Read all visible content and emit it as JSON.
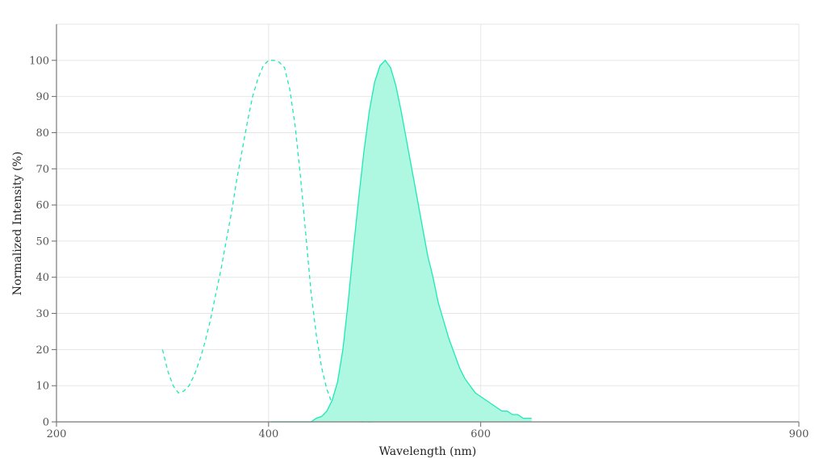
{
  "chart_data": {
    "type": "area",
    "xlabel": "Wavelength (nm)",
    "ylabel": "Normalized Intensity (%)",
    "xlim": [
      200,
      900
    ],
    "ylim": [
      0,
      110
    ],
    "grid": true,
    "x_ticks": [
      200,
      400,
      600,
      900
    ],
    "y_ticks": [
      0,
      10,
      20,
      30,
      40,
      50,
      60,
      70,
      80,
      90,
      100
    ],
    "colors": {
      "excitation": "#1de9b6",
      "emission_line": "#1de9b6",
      "emission_fill": "#aef8e2"
    },
    "series": [
      {
        "style": "dashed-line",
        "x": [
          300,
          305,
          310,
          315,
          320,
          325,
          330,
          335,
          340,
          345,
          350,
          355,
          360,
          365,
          370,
          375,
          380,
          385,
          390,
          395,
          400,
          405,
          410,
          415,
          420,
          425,
          430,
          435,
          440,
          445,
          450,
          455,
          460,
          465,
          470,
          475,
          480,
          485,
          490,
          495,
          500
        ],
        "y": [
          20,
          14,
          10,
          8,
          8.5,
          10,
          13,
          17,
          22,
          28,
          35,
          42,
          50,
          58,
          67,
          75,
          83,
          90,
          95,
          98.5,
          100,
          100,
          99.5,
          98,
          92,
          82,
          68,
          52,
          36,
          24,
          15,
          9,
          5,
          2.5,
          1.2,
          0.5,
          0.2,
          0,
          0,
          0,
          0
        ]
      },
      {
        "style": "filled-area",
        "x": [
          402,
          420,
          430,
          440,
          445,
          450,
          455,
          460,
          465,
          470,
          475,
          480,
          485,
          490,
          495,
          500,
          505,
          510,
          515,
          520,
          525,
          530,
          535,
          540,
          545,
          550,
          555,
          560,
          565,
          570,
          575,
          580,
          585,
          590,
          595,
          600,
          605,
          610,
          615,
          620,
          625,
          630,
          635,
          640,
          648
        ],
        "y": [
          0,
          0,
          0,
          0,
          1,
          1.5,
          3,
          6,
          11,
          20,
          33,
          48,
          62,
          75,
          86,
          94,
          98.5,
          100,
          98,
          93,
          86,
          78,
          70,
          62,
          54,
          46,
          40,
          33,
          28,
          23,
          19,
          15,
          12,
          10,
          8,
          7,
          6,
          5,
          4,
          3,
          3,
          2,
          2,
          1,
          1
        ]
      }
    ]
  }
}
